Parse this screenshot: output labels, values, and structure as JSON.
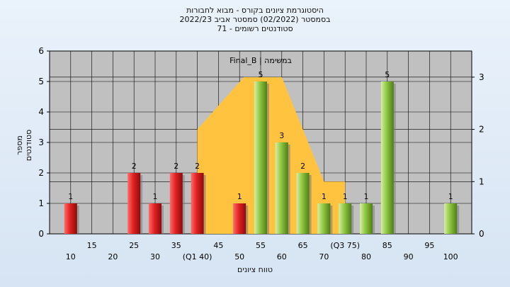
{
  "chart_data": {
    "type": "bar",
    "title_lines": [
      "היסטוגרמת ציונים בקורס - מבוא לחבורות",
      "בסמסטר  (02/2022)  סמסטר אביב 2022/23",
      "סטודנטים רשומים - 71"
    ],
    "series_label": "Final_B | במשימה",
    "ylabel": "מספר סטודנטים",
    "xlabel": "טווח ציונים",
    "ylim": [
      0,
      6
    ],
    "yticks": [
      "0",
      "1",
      "2",
      "3",
      "4",
      "5",
      "6"
    ],
    "y2lim": [
      0,
      3.5
    ],
    "y2ticks": [
      "0",
      "1",
      "2",
      "3"
    ],
    "xlim": [
      5,
      105
    ],
    "xticks_lower": [
      {
        "x": 10,
        "label": "10"
      },
      {
        "x": 20,
        "label": "20"
      },
      {
        "x": 30,
        "label": "30"
      },
      {
        "x": 40,
        "label": "(Q1 40)"
      },
      {
        "x": 50,
        "label": "50"
      },
      {
        "x": 60,
        "label": "60"
      },
      {
        "x": 70,
        "label": "70"
      },
      {
        "x": 80,
        "label": "80"
      },
      {
        "x": 90,
        "label": "90"
      },
      {
        "x": 100,
        "label": "100"
      }
    ],
    "xticks_upper": [
      {
        "x": 15,
        "label": "15"
      },
      {
        "x": 25,
        "label": "25"
      },
      {
        "x": 35,
        "label": "35"
      },
      {
        "x": 45,
        "label": "45"
      },
      {
        "x": 55,
        "label": "55"
      },
      {
        "x": 65,
        "label": "65"
      },
      {
        "x": 75,
        "label": "(Q3 75)"
      },
      {
        "x": 85,
        "label": "85"
      },
      {
        "x": 95,
        "label": "95"
      }
    ],
    "bars": [
      {
        "x": 10,
        "value": 1,
        "label": "1"
      },
      {
        "x": 25,
        "value": 2,
        "label": "2"
      },
      {
        "x": 30,
        "value": 1,
        "label": "1"
      },
      {
        "x": 35,
        "value": 2,
        "label": "2"
      },
      {
        "x": 40,
        "value": 2,
        "label": "2"
      },
      {
        "x": 50,
        "value": 1,
        "label": "1"
      },
      {
        "x": 55,
        "value": 5,
        "label": "5"
      },
      {
        "x": 60,
        "value": 3,
        "label": "3"
      },
      {
        "x": 65,
        "value": 2,
        "label": "2"
      },
      {
        "x": 70,
        "value": 1,
        "label": "1"
      },
      {
        "x": 75,
        "value": 1,
        "label": "1"
      },
      {
        "x": 80,
        "value": 1,
        "label": "1"
      },
      {
        "x": 85,
        "value": 5,
        "label": "5"
      },
      {
        "x": 100,
        "value": 1,
        "label": "1"
      }
    ],
    "fail_threshold": 55,
    "area_series": [
      {
        "x": 40,
        "y2": 2.0
      },
      {
        "x": 51,
        "y2": 3.0
      },
      {
        "x": 60,
        "y2": 3.0
      },
      {
        "x": 70,
        "y2": 1.0
      },
      {
        "x": 75,
        "y2": 1.0
      }
    ],
    "colors": {
      "fail_bar": "#e02020",
      "pass_bar": "#8dc63f",
      "area": "#ffc340",
      "plot_bg": "#c0c0c0"
    }
  }
}
